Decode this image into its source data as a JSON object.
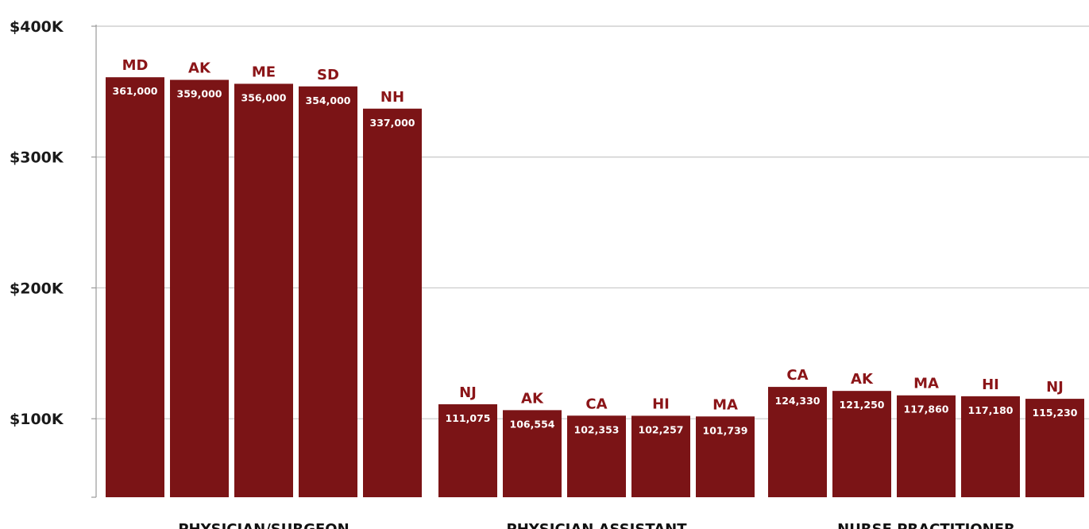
{
  "chart_data": {
    "type": "bar",
    "title": "",
    "xlabel": "",
    "ylabel": "",
    "ylim": [
      0,
      400000
    ],
    "y_ticks": [
      {
        "value": 100000,
        "label": "$100K"
      },
      {
        "value": 200000,
        "label": "$200K"
      },
      {
        "value": 300000,
        "label": "$300K"
      },
      {
        "value": 400000,
        "label": "$400K"
      }
    ],
    "grid": true,
    "legend": "none",
    "bar_color": "#7b1416",
    "state_label_color": "#8b1518",
    "groups": [
      {
        "name": "PHYSICIAN/SURGEON",
        "bars": [
          {
            "state": "MD",
            "value": 361000,
            "label": "361,000"
          },
          {
            "state": "AK",
            "value": 359000,
            "label": "359,000"
          },
          {
            "state": "ME",
            "value": 356000,
            "label": "356,000"
          },
          {
            "state": "SD",
            "value": 354000,
            "label": "354,000"
          },
          {
            "state": "NH",
            "value": 337000,
            "label": "337,000"
          }
        ]
      },
      {
        "name": "PHYSICIAN ASSISTANT",
        "bars": [
          {
            "state": "NJ",
            "value": 111075,
            "label": "111,075"
          },
          {
            "state": "AK",
            "value": 106554,
            "label": "106,554"
          },
          {
            "state": "CA",
            "value": 102353,
            "label": "102,353"
          },
          {
            "state": "HI",
            "value": 102257,
            "label": "102,257"
          },
          {
            "state": "MA",
            "value": 101739,
            "label": "101,739"
          }
        ]
      },
      {
        "name": "NURSE PRACTITIONER",
        "bars": [
          {
            "state": "CA",
            "value": 124330,
            "label": "124,330"
          },
          {
            "state": "AK",
            "value": 121250,
            "label": "121,250"
          },
          {
            "state": "MA",
            "value": 117860,
            "label": "117,860"
          },
          {
            "state": "HI",
            "value": 117180,
            "label": "117,180"
          },
          {
            "state": "NJ",
            "value": 115230,
            "label": "115,230"
          }
        ]
      }
    ]
  }
}
